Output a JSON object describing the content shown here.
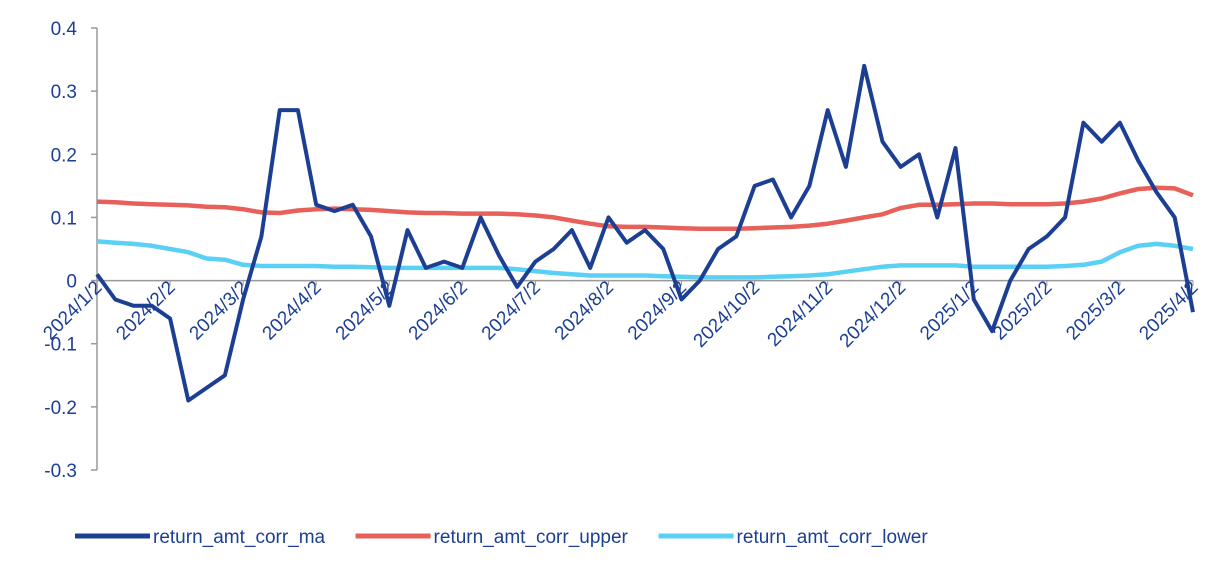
{
  "chart_data": {
    "type": "line",
    "categories": [
      "2024/1/2",
      null,
      null,
      null,
      "2024/2/2",
      null,
      null,
      null,
      "2024/3/2",
      null,
      null,
      null,
      "2024/4/2",
      null,
      null,
      null,
      "2024/5/2",
      null,
      null,
      null,
      "2024/6/2",
      null,
      null,
      null,
      "2024/7/2",
      null,
      null,
      null,
      "2024/8/2",
      null,
      null,
      null,
      "2024/9/2",
      null,
      null,
      null,
      "2024/10/2",
      null,
      null,
      null,
      "2024/11/2",
      null,
      null,
      null,
      "2024/12/2",
      null,
      null,
      null,
      "2025/1/2",
      null,
      null,
      null,
      "2025/2/2",
      null,
      null,
      null,
      "2025/3/2",
      null,
      null,
      null,
      "2025/4/2"
    ],
    "series": [
      {
        "name": "return_amt_corr_ma",
        "color": "#1c3f94",
        "values": [
          0.01,
          -0.03,
          -0.04,
          -0.04,
          -0.06,
          -0.19,
          -0.17,
          -0.15,
          -0.03,
          0.07,
          0.27,
          0.27,
          0.12,
          0.11,
          0.12,
          0.07,
          -0.04,
          0.08,
          0.02,
          0.03,
          0.02,
          0.1,
          0.04,
          -0.01,
          0.03,
          0.05,
          0.08,
          0.02,
          0.1,
          0.06,
          0.08,
          0.05,
          -0.03,
          0.0,
          0.05,
          0.07,
          0.15,
          0.16,
          0.1,
          0.15,
          0.27,
          0.18,
          0.34,
          0.22,
          0.18,
          0.2,
          0.1,
          0.21,
          -0.03,
          -0.08,
          0.0,
          0.05,
          0.07,
          0.1,
          0.25,
          0.22,
          0.25,
          0.19,
          0.14,
          0.1,
          -0.05
        ]
      },
      {
        "name": "return_amt_corr_upper",
        "color": "#e8605a",
        "values": [
          0.125,
          0.124,
          0.122,
          0.121,
          0.12,
          0.119,
          0.117,
          0.116,
          0.113,
          0.108,
          0.107,
          0.111,
          0.113,
          0.114,
          0.113,
          0.112,
          0.11,
          0.108,
          0.107,
          0.107,
          0.106,
          0.106,
          0.106,
          0.105,
          0.103,
          0.1,
          0.095,
          0.09,
          0.086,
          0.085,
          0.085,
          0.084,
          0.083,
          0.082,
          0.082,
          0.082,
          0.083,
          0.084,
          0.085,
          0.087,
          0.09,
          0.095,
          0.1,
          0.105,
          0.115,
          0.12,
          0.12,
          0.121,
          0.122,
          0.122,
          0.121,
          0.121,
          0.121,
          0.122,
          0.125,
          0.13,
          0.138,
          0.145,
          0.147,
          0.146,
          0.135
        ]
      },
      {
        "name": "return_amt_corr_lower",
        "color": "#5bd0f5",
        "values": [
          0.062,
          0.06,
          0.058,
          0.055,
          0.05,
          0.045,
          0.035,
          0.033,
          0.025,
          0.023,
          0.023,
          0.023,
          0.023,
          0.022,
          0.022,
          0.021,
          0.02,
          0.02,
          0.02,
          0.02,
          0.02,
          0.02,
          0.02,
          0.018,
          0.015,
          0.012,
          0.01,
          0.008,
          0.008,
          0.008,
          0.008,
          0.007,
          0.006,
          0.005,
          0.005,
          0.005,
          0.005,
          0.006,
          0.007,
          0.008,
          0.01,
          0.014,
          0.018,
          0.022,
          0.024,
          0.024,
          0.024,
          0.024,
          0.022,
          0.022,
          0.022,
          0.022,
          0.022,
          0.023,
          0.025,
          0.03,
          0.045,
          0.055,
          0.058,
          0.055,
          0.05
        ]
      }
    ],
    "ylim": [
      -0.3,
      0.4
    ],
    "yticks": [
      -0.3,
      -0.2,
      -0.1,
      0,
      0.1,
      0.2,
      0.3,
      0.4
    ],
    "legend": "bottom"
  }
}
